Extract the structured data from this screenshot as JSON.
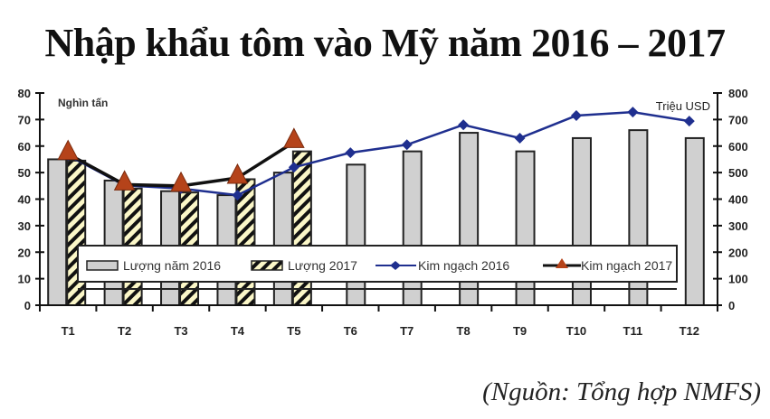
{
  "chart_data": {
    "type": "bar",
    "title": "Nhập khẩu tôm vào Mỹ năm 2016 – 2017",
    "source": "(Nguồn: Tổng hợp NMFS)",
    "categories": [
      "T1",
      "T2",
      "T3",
      "T4",
      "T5",
      "T6",
      "T7",
      "T8",
      "T9",
      "T10",
      "T11",
      "T12"
    ],
    "ylabel_left": "Nghìn tấn",
    "ylabel_right": "Triệu USD",
    "ylim_left": [
      0,
      80
    ],
    "ylim_right": [
      0,
      800
    ],
    "yticks_left": [
      0,
      10,
      20,
      30,
      40,
      50,
      60,
      70,
      80
    ],
    "yticks_right": [
      0,
      100,
      200,
      300,
      400,
      500,
      600,
      700,
      800
    ],
    "grid": false,
    "legend_position": "inside-bottom",
    "series": [
      {
        "name": "Lượng năm 2016",
        "type": "bar",
        "axis": "left",
        "color": "#d0d0d0",
        "values": [
          55,
          47,
          43,
          41.5,
          50,
          53,
          58,
          65,
          58,
          63,
          66,
          63
        ]
      },
      {
        "name": "Lượng 2017",
        "type": "bar-hatched",
        "axis": "left",
        "color": "#fbf7c8",
        "values": [
          54.5,
          44,
          42.5,
          47.5,
          58,
          null,
          null,
          null,
          null,
          null,
          null,
          null
        ]
      },
      {
        "name": "Kim ngạch 2016",
        "type": "line",
        "axis": "right",
        "color": "#1f2f8f",
        "marker": "diamond",
        "values": [
          565,
          452,
          440,
          415,
          520,
          575,
          605,
          680,
          630,
          715,
          728,
          694
        ]
      },
      {
        "name": "Kim ngạch 2017",
        "type": "line",
        "axis": "right",
        "color": "#111111",
        "marker": "triangle",
        "marker_color": "#b5431a",
        "values": [
          570,
          455,
          450,
          480,
          615,
          null,
          null,
          null,
          null,
          null,
          null,
          null
        ]
      }
    ]
  },
  "labels": {
    "title": "Nhập khẩu tôm vào Mỹ năm 2016 – 2017",
    "source": "(Nguồn: Tổng hợp NMFS)",
    "unit_left": "Nghìn tấn",
    "unit_right": "Triệu USD"
  }
}
